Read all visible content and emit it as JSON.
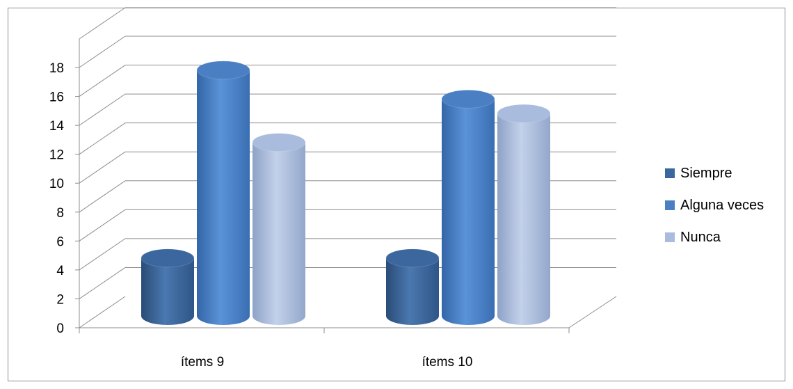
{
  "chart_data": {
    "type": "bar",
    "style": "3d-cylinder",
    "categories": [
      "ítems 9",
      "ítems 10"
    ],
    "series": [
      {
        "name": "Siempre",
        "values": [
          4,
          4
        ],
        "color": "#3C679E"
      },
      {
        "name": "Alguna veces",
        "values": [
          17,
          15
        ],
        "color": "#4A7FC4"
      },
      {
        "name": "Nunca",
        "values": [
          12,
          14
        ],
        "color": "#A9BCDD"
      }
    ],
    "title": "",
    "xlabel": "",
    "ylabel": "",
    "ylim": [
      0,
      18
    ],
    "yticks": [
      "0",
      "2",
      "4",
      "6",
      "8",
      "10",
      "12",
      "14",
      "16",
      "18"
    ],
    "grid": true,
    "legend": "right"
  }
}
